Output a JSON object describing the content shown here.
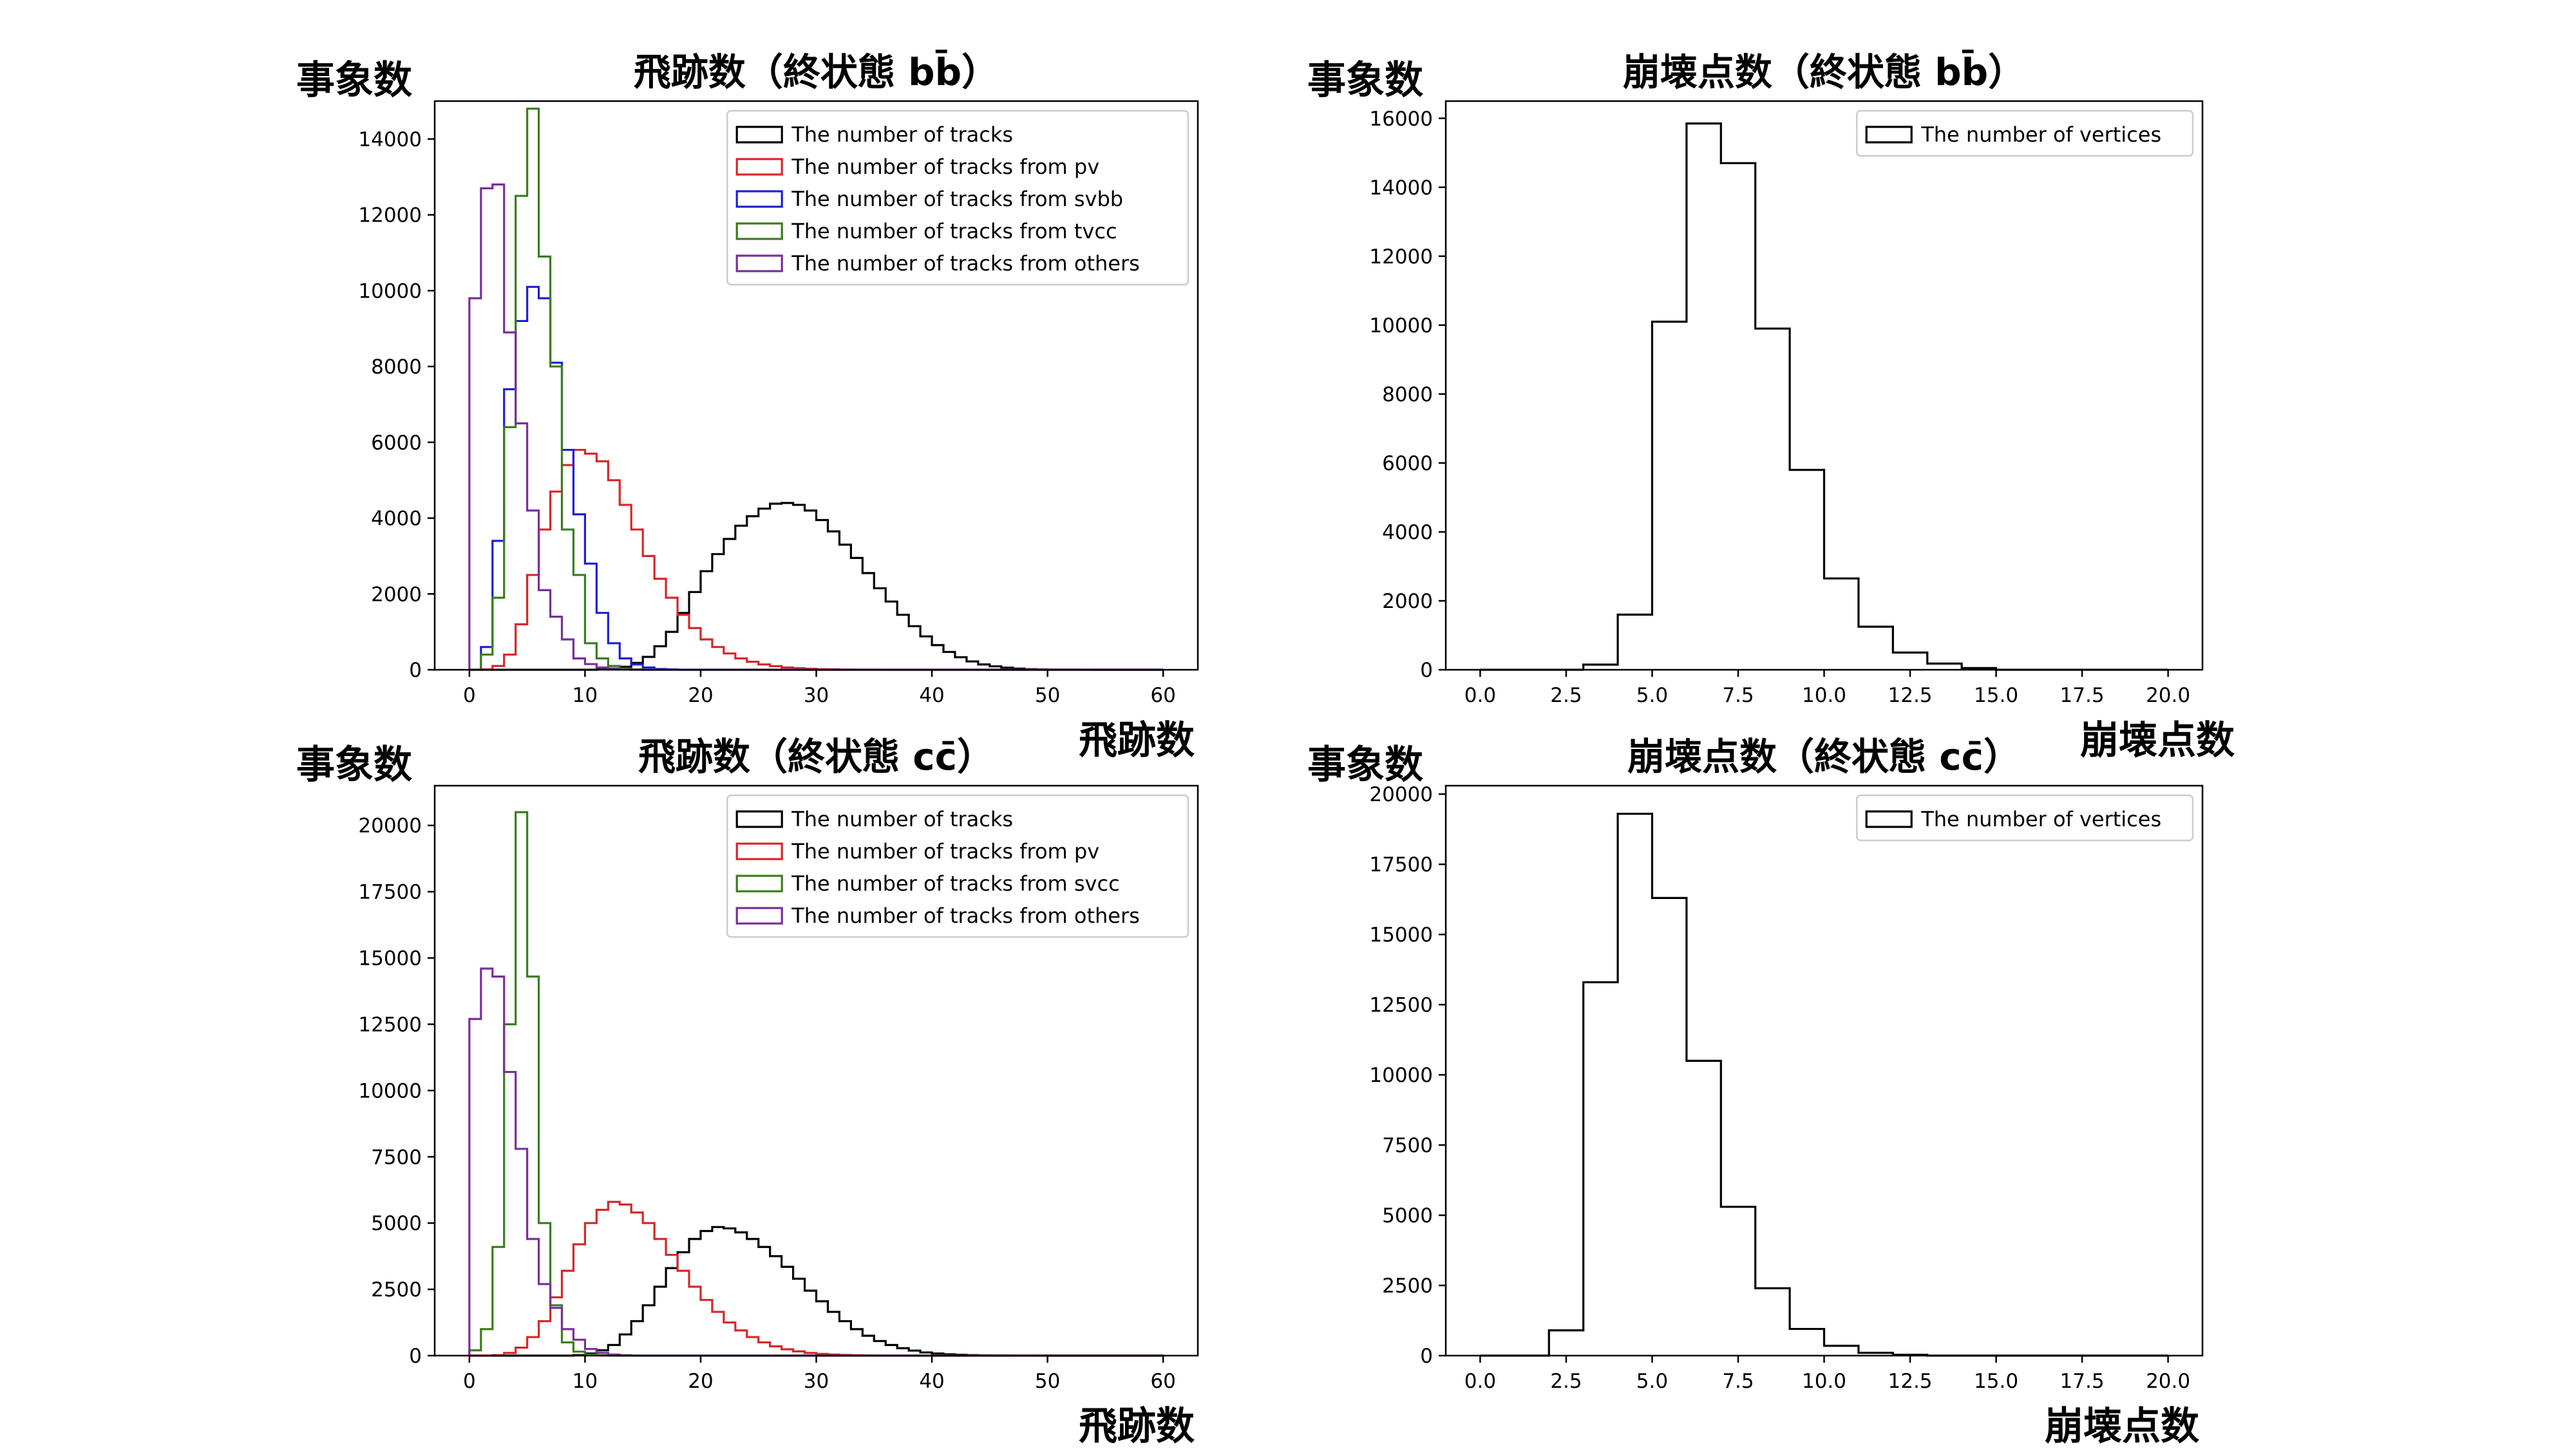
{
  "chart_data": [
    {
      "id": "tracks-bb",
      "type": "histogram",
      "title": "飛跡数（終状態 bb̄）",
      "ylabel": "事象数",
      "xlabel": "飛跡数",
      "xlim": [
        -3,
        63
      ],
      "ylim": [
        0,
        15000
      ],
      "xticks": [
        0,
        10,
        20,
        30,
        40,
        50,
        60
      ],
      "xtick_labels": [
        "0",
        "10",
        "20",
        "30",
        "40",
        "50",
        "60"
      ],
      "yticks": [
        0,
        2000,
        4000,
        6000,
        8000,
        10000,
        12000,
        14000
      ],
      "ytick_labels": [
        "0",
        "2000",
        "4000",
        "6000",
        "8000",
        "10000",
        "12000",
        "14000"
      ],
      "legend_position": "upper-right",
      "bin_start": 0,
      "bin_width": 1,
      "series": [
        {
          "name": "The number of tracks",
          "color": "#000000",
          "values": [
            0,
            0,
            0,
            0,
            0,
            0,
            0,
            0,
            0,
            0,
            0,
            10,
            30,
            80,
            180,
            340,
            620,
            1000,
            1500,
            2050,
            2600,
            3050,
            3450,
            3800,
            4050,
            4250,
            4380,
            4400,
            4350,
            4200,
            3950,
            3650,
            3300,
            2950,
            2550,
            2150,
            1800,
            1450,
            1150,
            880,
            650,
            470,
            330,
            220,
            140,
            90,
            55,
            30,
            15,
            8,
            5,
            3,
            2,
            1,
            0,
            0,
            0,
            0,
            0,
            0
          ]
        },
        {
          "name": "The number of tracks from pv",
          "color": "#d62728",
          "values": [
            0,
            10,
            100,
            400,
            1200,
            2500,
            3700,
            4700,
            5400,
            5800,
            5700,
            5500,
            5000,
            4350,
            3700,
            3000,
            2400,
            1900,
            1450,
            1100,
            800,
            600,
            430,
            300,
            210,
            140,
            95,
            60,
            40,
            25,
            15,
            10,
            5,
            3,
            2,
            1,
            0,
            0,
            0,
            0,
            0,
            0,
            0,
            0,
            0,
            0,
            0,
            0,
            0,
            0,
            0,
            0,
            0,
            0,
            0,
            0,
            0,
            0,
            0,
            0
          ]
        },
        {
          "name": "The number of tracks from svbb",
          "color": "#1f1fd6",
          "values": [
            0,
            600,
            3400,
            7400,
            9200,
            10100,
            9800,
            8100,
            5800,
            4100,
            2800,
            1500,
            700,
            300,
            140,
            60,
            20,
            10,
            0,
            0,
            0,
            0,
            0,
            0,
            0,
            0,
            0,
            0,
            0,
            0,
            0,
            0,
            0,
            0,
            0,
            0,
            0,
            0,
            0,
            0,
            0,
            0,
            0,
            0,
            0,
            0,
            0,
            0,
            0,
            0,
            0,
            0,
            0,
            0,
            0,
            0,
            0,
            0,
            0,
            0
          ]
        },
        {
          "name": "The number of tracks from tvcc",
          "color": "#3a7d1c",
          "values": [
            0,
            400,
            1900,
            6400,
            12500,
            14800,
            10900,
            8000,
            3700,
            2500,
            700,
            300,
            100,
            30,
            10,
            0,
            0,
            0,
            0,
            0,
            0,
            0,
            0,
            0,
            0,
            0,
            0,
            0,
            0,
            0,
            0,
            0,
            0,
            0,
            0,
            0,
            0,
            0,
            0,
            0,
            0,
            0,
            0,
            0,
            0,
            0,
            0,
            0,
            0,
            0,
            0,
            0,
            0,
            0,
            0,
            0,
            0,
            0,
            0,
            0
          ]
        },
        {
          "name": "The number of tracks from others",
          "color": "#7b2d9b",
          "values": [
            9800,
            12700,
            12800,
            8900,
            6500,
            4200,
            2100,
            1400,
            800,
            300,
            150,
            60,
            20,
            10,
            0,
            0,
            0,
            0,
            0,
            0,
            0,
            0,
            0,
            0,
            0,
            0,
            0,
            0,
            0,
            0,
            0,
            0,
            0,
            0,
            0,
            0,
            0,
            0,
            0,
            0,
            0,
            0,
            0,
            0,
            0,
            0,
            0,
            0,
            0,
            0,
            0,
            0,
            0,
            0,
            0,
            0,
            0,
            0,
            0,
            0
          ]
        }
      ]
    },
    {
      "id": "vertices-bb",
      "type": "histogram",
      "title": "崩壊点数（終状態 bb̄）",
      "ylabel": "事象数",
      "xlabel": "",
      "xlim": [
        -1,
        21
      ],
      "ylim": [
        0,
        16500
      ],
      "xticks": [
        0,
        2.5,
        5,
        7.5,
        10,
        12.5,
        15,
        17.5,
        20
      ],
      "xtick_labels": [
        "0.0",
        "2.5",
        "5.0",
        "7.5",
        "10.0",
        "12.5",
        "15.0",
        "17.5",
        "20.0"
      ],
      "yticks": [
        0,
        2000,
        4000,
        6000,
        8000,
        10000,
        12000,
        14000,
        16000
      ],
      "ytick_labels": [
        "0",
        "2000",
        "4000",
        "6000",
        "8000",
        "10000",
        "12000",
        "14000",
        "16000"
      ],
      "legend_position": "upper-right",
      "bin_start": 0,
      "bin_width": 1,
      "series": [
        {
          "name": "The number of vertices",
          "color": "#000000",
          "values": [
            0,
            0,
            0,
            150,
            1600,
            10100,
            15850,
            14700,
            9900,
            5800,
            2650,
            1250,
            500,
            180,
            50,
            0,
            0,
            0,
            0,
            0
          ]
        }
      ]
    },
    {
      "id": "tracks-cc",
      "type": "histogram",
      "title": "飛跡数（終状態 cc̄）",
      "ylabel": "事象数",
      "xlabel": "飛跡数",
      "xlim": [
        -3,
        63
      ],
      "ylim": [
        0,
        21500
      ],
      "xticks": [
        0,
        10,
        20,
        30,
        40,
        50,
        60
      ],
      "xtick_labels": [
        "0",
        "10",
        "20",
        "30",
        "40",
        "50",
        "60"
      ],
      "yticks": [
        0,
        2500,
        5000,
        7500,
        10000,
        12500,
        15000,
        17500,
        20000
      ],
      "ytick_labels": [
        "0",
        "2500",
        "5000",
        "7500",
        "10000",
        "12500",
        "15000",
        "17500",
        "20000"
      ],
      "legend_position": "upper-right",
      "bin_start": 0,
      "bin_width": 1,
      "series": [
        {
          "name": "The number of tracks",
          "color": "#000000",
          "values": [
            0,
            0,
            0,
            0,
            0,
            0,
            0,
            0,
            0,
            20,
            80,
            200,
            400,
            800,
            1300,
            1900,
            2600,
            3300,
            3900,
            4400,
            4700,
            4850,
            4800,
            4650,
            4400,
            4100,
            3750,
            3350,
            2900,
            2450,
            2050,
            1650,
            1300,
            1000,
            750,
            550,
            400,
            280,
            190,
            120,
            80,
            50,
            30,
            18,
            10,
            5,
            3,
            2,
            1,
            0,
            0,
            0,
            0,
            0,
            0,
            0,
            0,
            0,
            0,
            0
          ]
        },
        {
          "name": "The number of tracks from pv",
          "color": "#d62728",
          "values": [
            0,
            0,
            20,
            100,
            300,
            700,
            1300,
            2200,
            3200,
            4200,
            5000,
            5500,
            5800,
            5700,
            5400,
            5000,
            4400,
            3800,
            3200,
            2600,
            2100,
            1650,
            1250,
            950,
            700,
            500,
            350,
            240,
            160,
            100,
            65,
            40,
            25,
            15,
            8,
            4,
            2,
            1,
            0,
            0,
            0,
            0,
            0,
            0,
            0,
            0,
            0,
            0,
            0,
            0,
            0,
            0,
            0,
            0,
            0,
            0,
            0,
            0,
            0,
            0
          ]
        },
        {
          "name": "The number of tracks from svcc",
          "color": "#3a7d1c",
          "values": [
            200,
            1000,
            4100,
            12500,
            20500,
            14300,
            5000,
            1900,
            500,
            150,
            40,
            10,
            0,
            0,
            0,
            0,
            0,
            0,
            0,
            0,
            0,
            0,
            0,
            0,
            0,
            0,
            0,
            0,
            0,
            0,
            0,
            0,
            0,
            0,
            0,
            0,
            0,
            0,
            0,
            0,
            0,
            0,
            0,
            0,
            0,
            0,
            0,
            0,
            0,
            0,
            0,
            0,
            0,
            0,
            0,
            0,
            0,
            0,
            0,
            0
          ]
        },
        {
          "name": "The number of tracks from others",
          "color": "#7b2d9b",
          "values": [
            12700,
            14600,
            14300,
            10700,
            7800,
            4400,
            2700,
            1800,
            1000,
            600,
            250,
            100,
            40,
            15,
            0,
            0,
            0,
            0,
            0,
            0,
            0,
            0,
            0,
            0,
            0,
            0,
            0,
            0,
            0,
            0,
            0,
            0,
            0,
            0,
            0,
            0,
            0,
            0,
            0,
            0,
            0,
            0,
            0,
            0,
            0,
            0,
            0,
            0,
            0,
            0,
            0,
            0,
            0,
            0,
            0,
            0,
            0,
            0,
            0,
            0
          ]
        }
      ]
    },
    {
      "id": "vertices-cc",
      "type": "histogram",
      "title": "崩壊点数（終状態 cc̄）",
      "ylabel": "事象数",
      "xlabel": "崩壊点数",
      "xlim": [
        -1,
        21
      ],
      "ylim": [
        0,
        20300
      ],
      "xticks": [
        0,
        2.5,
        5,
        7.5,
        10,
        12.5,
        15,
        17.5,
        20
      ],
      "xtick_labels": [
        "0.0",
        "2.5",
        "5.0",
        "7.5",
        "10.0",
        "12.5",
        "15.0",
        "17.5",
        "20.0"
      ],
      "yticks": [
        0,
        2500,
        5000,
        7500,
        10000,
        12500,
        15000,
        17500,
        20000
      ],
      "ytick_labels": [
        "0",
        "2500",
        "5000",
        "7500",
        "10000",
        "12500",
        "15000",
        "17500",
        "20000"
      ],
      "legend_position": "upper-right",
      "bin_start": 0,
      "bin_width": 1,
      "series": [
        {
          "name": "The number of vertices",
          "color": "#000000",
          "values": [
            0,
            0,
            900,
            13300,
            19300,
            16300,
            10500,
            5300,
            2400,
            950,
            350,
            100,
            30,
            0,
            0,
            0,
            0,
            0,
            0,
            0
          ]
        }
      ]
    }
  ],
  "extra_labels": {
    "right_top_xlabel": "崩壊点数"
  }
}
